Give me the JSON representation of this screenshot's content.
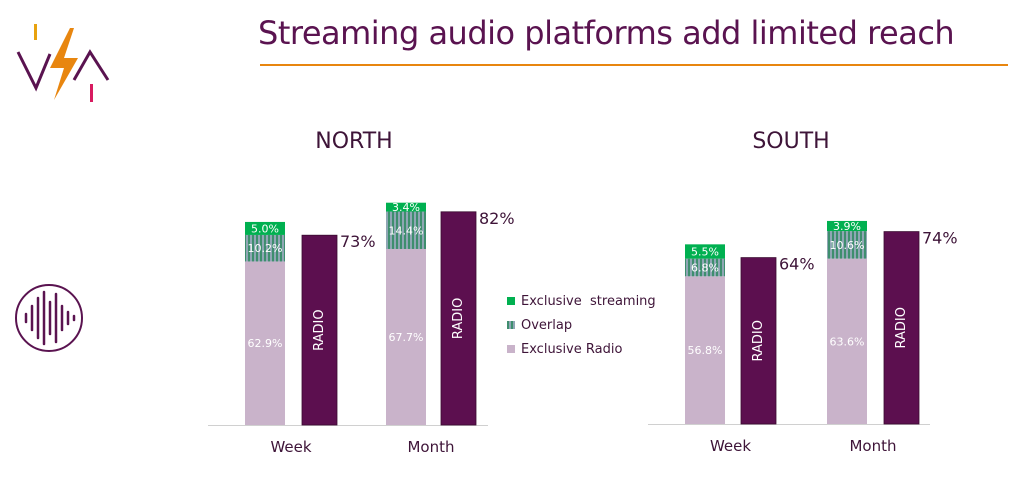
{
  "title": "Streaming audio platforms add limited reach",
  "colors": {
    "exclusive_streaming": "#00b050",
    "overlap": "#7a9aa0",
    "exclusive_radio": "#c9b3ca",
    "radio": "#5c0f4f",
    "title": "#5a1350",
    "rule": "#e8860f"
  },
  "legend": {
    "items": [
      {
        "label": "Exclusive  streaming",
        "color": "#00b050"
      },
      {
        "label": "Overlap",
        "color": "#7a9aa0"
      },
      {
        "label": "Exclusive Radio",
        "color": "#c9b3ca"
      }
    ]
  },
  "icons": {
    "logo": "vsa-logo-icon",
    "wave": "sound-wave-icon"
  },
  "chart_data": [
    {
      "type": "bar",
      "title": "NORTH",
      "categories": [
        "Week",
        "Month"
      ],
      "series": [
        {
          "name": "Exclusive Radio",
          "values": [
            62.9,
            67.7
          ],
          "labels": [
            "62.9%",
            "67.7%"
          ]
        },
        {
          "name": "Overlap",
          "values": [
            10.2,
            14.4
          ],
          "labels": [
            "10.2%",
            "14.4%"
          ]
        },
        {
          "name": "Exclusive  streaming",
          "values": [
            5.0,
            3.4
          ],
          "labels": [
            "5.0%",
            "3.4%"
          ]
        },
        {
          "name": "RADIO",
          "values": [
            73,
            82
          ],
          "labels": [
            "73%",
            "82%"
          ]
        }
      ],
      "ylim": [
        0,
        100
      ]
    },
    {
      "type": "bar",
      "title": "SOUTH",
      "categories": [
        "Week",
        "Month"
      ],
      "series": [
        {
          "name": "Exclusive Radio",
          "values": [
            56.8,
            63.6
          ],
          "labels": [
            "56.8%",
            "63.6%"
          ]
        },
        {
          "name": "Overlap",
          "values": [
            6.8,
            10.6
          ],
          "labels": [
            "6.8%",
            "10.6%"
          ]
        },
        {
          "name": "Exclusive  streaming",
          "values": [
            5.5,
            3.9
          ],
          "labels": [
            "5.5%",
            "3.9%"
          ]
        },
        {
          "name": "RADIO",
          "values": [
            64,
            74
          ],
          "labels": [
            "64%",
            "74%"
          ]
        }
      ],
      "ylim": [
        0,
        100
      ]
    }
  ]
}
